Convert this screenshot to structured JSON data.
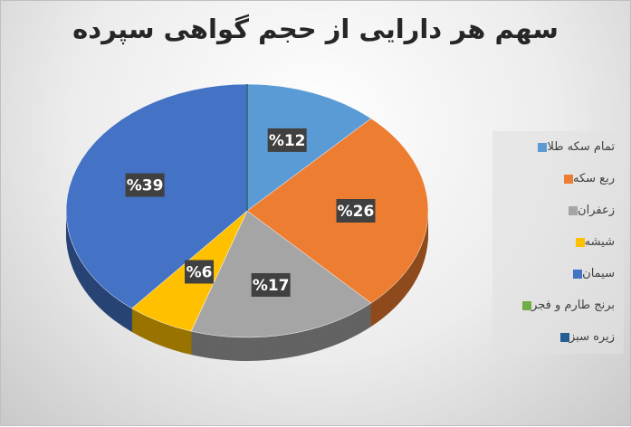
{
  "chart_data": {
    "type": "pie",
    "title": "سهم هر دارایی از حجم گواهی سپرده",
    "legend_position": "right",
    "slices": [
      {
        "name": "تمام سکه طلا",
        "value": 12,
        "label": "%12",
        "color": "#5b9bd5"
      },
      {
        "name": "ربع سکه",
        "value": 26,
        "label": "%26",
        "color": "#ed7d31"
      },
      {
        "name": "زعفران",
        "value": 17,
        "label": "%17",
        "color": "#a5a5a5"
      },
      {
        "name": "شیشه",
        "value": 6,
        "label": "%6",
        "color": "#ffc000"
      },
      {
        "name": "سیمان",
        "value": 39,
        "label": "%39",
        "color": "#4472c4"
      },
      {
        "name": "برنج طارم و فجر",
        "value": 0,
        "label": "",
        "color": "#70ad47"
      },
      {
        "name": "زیره سبز",
        "value": 0,
        "label": "",
        "color": "#255e91"
      }
    ]
  }
}
